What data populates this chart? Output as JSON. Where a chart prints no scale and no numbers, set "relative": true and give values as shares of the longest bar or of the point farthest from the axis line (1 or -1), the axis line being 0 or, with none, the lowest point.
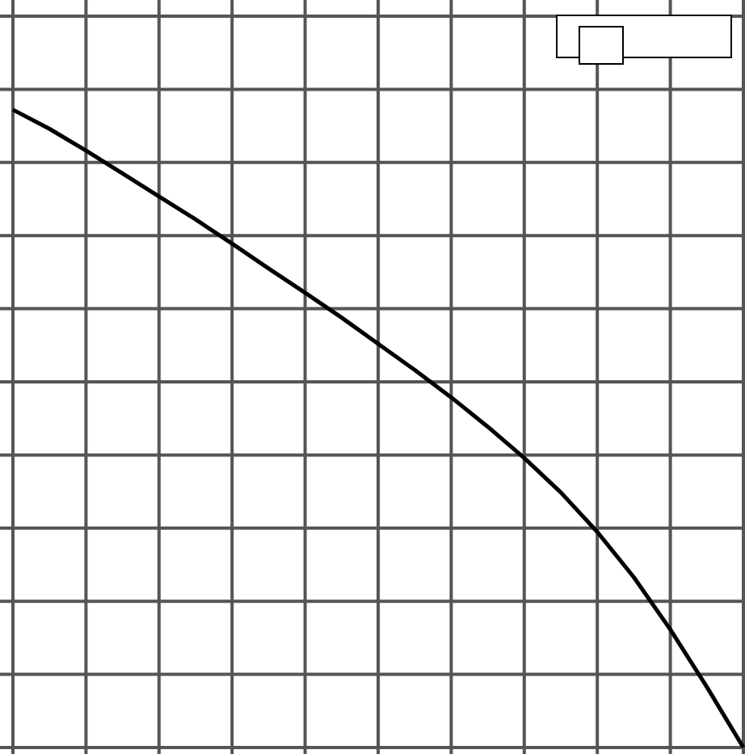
{
  "chart_data": {
    "type": "line",
    "relative": true,
    "grid": true,
    "marker": "none",
    "line_style": "solid",
    "categories": [
      null,
      null,
      null,
      null,
      null,
      null,
      null,
      null,
      null,
      null,
      null,
      null,
      null,
      null,
      null,
      null,
      null,
      null,
      null,
      null,
      null
    ],
    "series": [
      {
        "color": "#000000",
        "values": [
          1.0,
          0.97,
          0.936,
          0.9,
          0.864,
          0.828,
          0.79,
          0.751,
          0.713,
          0.674,
          0.633,
          0.592,
          0.549,
          0.503,
          0.454,
          0.4,
          0.338,
          0.267,
          0.185,
          0.095,
          0
        ]
      }
    ]
  }
}
